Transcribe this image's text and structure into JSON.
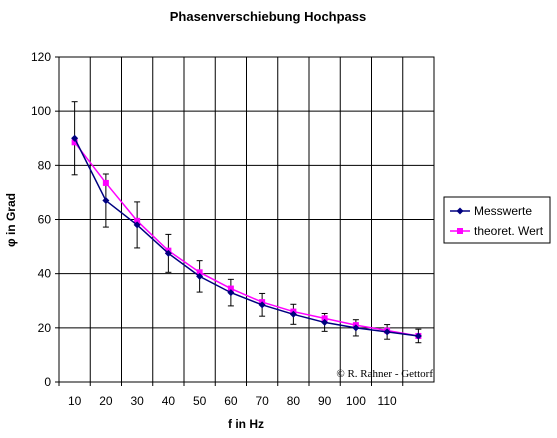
{
  "chart_data": {
    "type": "line",
    "title": "Phasenverschiebung Hochpass",
    "xlabel": "f in Hz",
    "ylabel": "φ in Grad",
    "categories": [
      "10",
      "20",
      "30",
      "40",
      "50",
      "60",
      "70",
      "80",
      "90",
      "100",
      "110",
      ""
    ],
    "ylim": [
      0,
      120
    ],
    "yticks": [
      0,
      20,
      40,
      60,
      80,
      100,
      120
    ],
    "grid": true,
    "legend_position": "right",
    "series": [
      {
        "name": "Messwerte",
        "color": "#000080",
        "marker": "diamond",
        "values": [
          90,
          67,
          58,
          47.5,
          39,
          33,
          28.5,
          25,
          22,
          20,
          18.5,
          17
        ],
        "error": [
          13.5,
          9.8,
          8.5,
          7.0,
          5.8,
          4.9,
          4.2,
          3.7,
          3.3,
          3.0,
          2.7,
          2.5
        ]
      },
      {
        "name": "theoret. Wert",
        "color": "#ff00ff",
        "marker": "square",
        "values": [
          88.5,
          73.5,
          59.5,
          48.5,
          40.5,
          34.5,
          29.5,
          26,
          23.5,
          21,
          19,
          17
        ]
      }
    ],
    "annotation": "© R. Rahner - Gettorf"
  }
}
